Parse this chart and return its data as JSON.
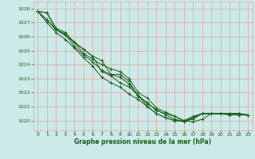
{
  "title": "Graphe pression niveau de la mer (hPa)",
  "bg_color": "#cceae8",
  "grid_color": "#e8a0a0",
  "line_color": "#1a5c1a",
  "tick_color": "#1a5c1a",
  "xlim": [
    -0.5,
    23.5
  ],
  "ylim": [
    1019.3,
    1028.5
  ],
  "yticks": [
    1020,
    1021,
    1022,
    1023,
    1024,
    1025,
    1026,
    1027,
    1028
  ],
  "xticks": [
    0,
    1,
    2,
    3,
    4,
    5,
    6,
    7,
    8,
    9,
    10,
    11,
    12,
    13,
    14,
    15,
    16,
    17,
    18,
    19,
    20,
    21,
    22,
    23
  ],
  "figsize": [
    3.2,
    2.0
  ],
  "dpi": 100,
  "series": [
    [
      1027.8,
      1027.7,
      1026.5,
      1026.2,
      1025.3,
      1024.7,
      1024.2,
      1023.6,
      1023.3,
      1023.3,
      1022.8,
      1021.7,
      1021.3,
      1020.7,
      1020.5,
      1020.3,
      1020.0,
      1020.3,
      1020.5,
      1020.5,
      1020.5,
      1020.4,
      1020.4,
      1020.4
    ],
    [
      1027.8,
      1027.7,
      1026.6,
      1026.3,
      1025.6,
      1024.8,
      1024.4,
      1024.0,
      1023.7,
      1023.5,
      1023.0,
      1022.0,
      1021.6,
      1020.9,
      1020.6,
      1020.3,
      1020.0,
      1019.9,
      1020.1,
      1020.5,
      1020.5,
      1020.5,
      1020.5,
      1020.4
    ],
    [
      1027.8,
      1027.2,
      1026.5,
      1026.1,
      1025.6,
      1025.1,
      1024.6,
      1024.3,
      1023.3,
      1023.1,
      1022.6,
      1021.8,
      1021.2,
      1020.8,
      1020.4,
      1020.1,
      1019.95,
      1020.1,
      1020.5,
      1020.5,
      1020.5,
      1020.5,
      1020.5,
      1020.4
    ],
    [
      1027.8,
      1027.2,
      1026.5,
      1026.1,
      1025.6,
      1025.1,
      1024.6,
      1023.5,
      1023.2,
      1022.7,
      1022.4,
      1021.8,
      1021.0,
      1020.5,
      1020.2,
      1020.0,
      1019.95,
      1020.2,
      1020.5,
      1020.5,
      1020.5,
      1020.5,
      1020.5,
      1020.4
    ],
    [
      1027.8,
      1027.0,
      1026.3,
      1025.8,
      1025.2,
      1024.5,
      1023.9,
      1023.1,
      1022.7,
      1022.4,
      1021.9,
      1021.5,
      1021.0,
      1020.5,
      1020.2,
      1020.0,
      1019.95,
      1020.2,
      1020.5,
      1020.5,
      1020.5,
      1020.5,
      1020.5,
      1020.4
    ]
  ]
}
